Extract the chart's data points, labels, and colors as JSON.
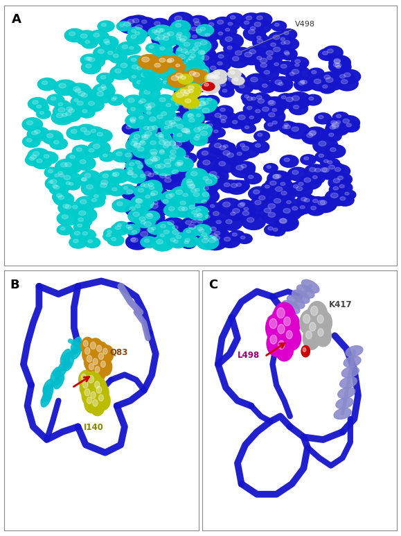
{
  "figure_size": [
    5.79,
    7.73
  ],
  "dpi": 100,
  "background_color": "#ffffff",
  "panel_A": {
    "label": "A",
    "annotation_V498": "V498",
    "blue_color": "#1515cc",
    "cyan_color": "#00cccc",
    "gold_color": "#c8860a",
    "yellow_color": "#cccc00",
    "red_color": "#cc0000",
    "white_color": "#d8d8d8",
    "gray_color": "#999999"
  },
  "panel_B": {
    "label": "B",
    "annotation_Q83": "Q83",
    "annotation_I140": "I140",
    "blue_color": "#1515cc",
    "light_blue_color": "#8080cc",
    "cyan_color": "#00bbcc",
    "gold_color": "#c8860a",
    "yellow_color": "#bbbb00",
    "red_color": "#cc0000"
  },
  "panel_C": {
    "label": "C",
    "annotation_L498": "L498",
    "annotation_K417": "K417",
    "blue_color": "#1515cc",
    "light_blue_color": "#8888cc",
    "magenta_color": "#dd00cc",
    "gray_color": "#aaaaaa",
    "red_color": "#cc0000"
  }
}
